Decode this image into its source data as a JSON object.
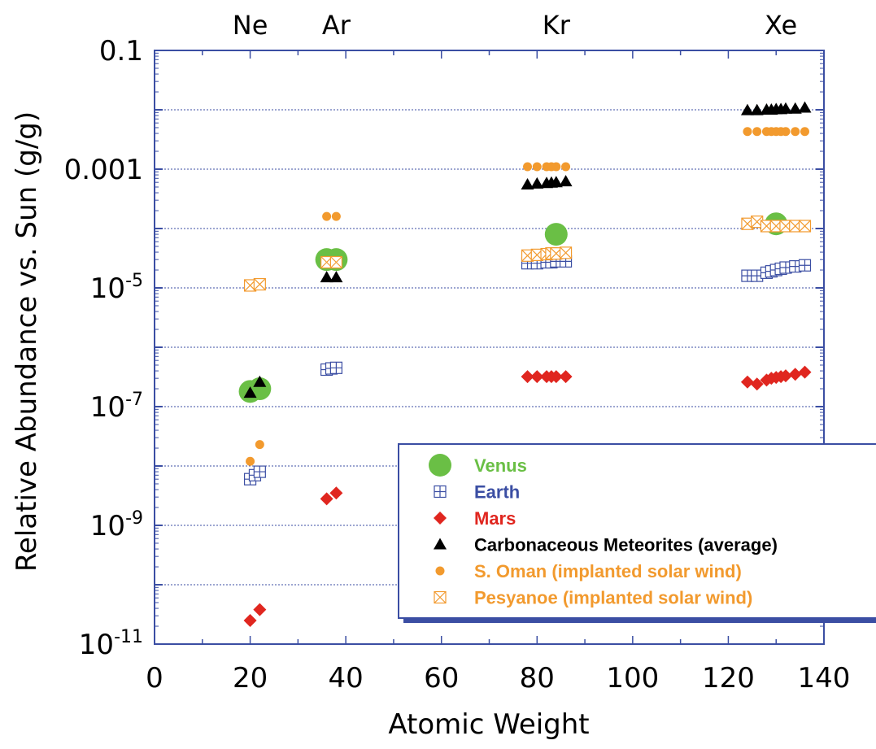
{
  "chart_data": {
    "type": "scatter",
    "title": "",
    "xlabel": "Atomic Weight",
    "ylabel": "Relative Abundance vs. Sun (g/g)",
    "xlim": [
      0,
      140
    ],
    "ylim": [
      1e-11,
      0.1
    ],
    "y_scale": "log",
    "x_ticks": [
      "0",
      "20",
      "40",
      "60",
      "80",
      "100",
      "120",
      "140"
    ],
    "y_ticks": [
      {
        "base": "0.1",
        "exp": ""
      },
      {
        "base": "0.001",
        "exp": ""
      },
      {
        "base": "10",
        "exp": "-5"
      },
      {
        "base": "10",
        "exp": "-7"
      },
      {
        "base": "10",
        "exp": "-9"
      },
      {
        "base": "10",
        "exp": "-11"
      }
    ],
    "element_labels": [
      {
        "text": "Ne",
        "x": 20
      },
      {
        "text": "Ar",
        "x": 38
      },
      {
        "text": "Kr",
        "x": 84
      },
      {
        "text": "Xe",
        "x": 131
      }
    ],
    "grid": "horizontal dotted",
    "legend_position": "lower-right",
    "series": [
      {
        "name": "Venus",
        "marker": "circle-large",
        "color": "#6abf45",
        "points": [
          [
            20,
            1.8e-07
          ],
          [
            22,
            2e-07
          ],
          [
            36,
            3e-05
          ],
          [
            38,
            3e-05
          ],
          [
            84,
            8e-05
          ],
          [
            130,
            0.00012
          ]
        ]
      },
      {
        "name": "Earth",
        "marker": "square-plus",
        "color": "#3b4ea3",
        "points": [
          [
            20,
            6e-09
          ],
          [
            21,
            7e-09
          ],
          [
            22,
            8e-09
          ],
          [
            36,
            4.2e-07
          ],
          [
            37,
            4.4e-07
          ],
          [
            38,
            4.5e-07
          ],
          [
            78,
            2.6e-05
          ],
          [
            80,
            2.6e-05
          ],
          [
            82,
            2.7e-05
          ],
          [
            83,
            2.7e-05
          ],
          [
            84,
            2.8e-05
          ],
          [
            86,
            2.8e-05
          ],
          [
            124,
            1.6e-05
          ],
          [
            126,
            1.6e-05
          ],
          [
            128,
            1.8e-05
          ],
          [
            129,
            1.9e-05
          ],
          [
            130,
            2e-05
          ],
          [
            131,
            2.1e-05
          ],
          [
            132,
            2.2e-05
          ],
          [
            134,
            2.3e-05
          ],
          [
            136,
            2.4e-05
          ]
        ]
      },
      {
        "name": "Mars",
        "marker": "diamond",
        "color": "#e0261f",
        "points": [
          [
            20,
            2.5e-11
          ],
          [
            22,
            3.8e-11
          ],
          [
            36,
            2.8e-09
          ],
          [
            38,
            3.5e-09
          ],
          [
            78,
            3.2e-07
          ],
          [
            80,
            3.2e-07
          ],
          [
            82,
            3.2e-07
          ],
          [
            83,
            3.2e-07
          ],
          [
            84,
            3.2e-07
          ],
          [
            86,
            3.2e-07
          ],
          [
            124,
            2.6e-07
          ],
          [
            126,
            2.4e-07
          ],
          [
            128,
            2.8e-07
          ],
          [
            129,
            3e-07
          ],
          [
            130,
            3.1e-07
          ],
          [
            131,
            3.2e-07
          ],
          [
            132,
            3.3e-07
          ],
          [
            134,
            3.5e-07
          ],
          [
            136,
            3.8e-07
          ]
        ]
      },
      {
        "name": "Carbonaceous Meteorites (average)",
        "marker": "triangle",
        "color": "#000000",
        "points": [
          [
            20,
            1.7e-07
          ],
          [
            22,
            2.6e-07
          ],
          [
            36,
            1.5e-05
          ],
          [
            38,
            1.5e-05
          ],
          [
            78,
            0.00055
          ],
          [
            80,
            0.00057
          ],
          [
            82,
            0.00058
          ],
          [
            83,
            0.00059
          ],
          [
            84,
            0.0006
          ],
          [
            86,
            0.00062
          ],
          [
            124,
            0.0098
          ],
          [
            126,
            0.0098
          ],
          [
            128,
            0.01
          ],
          [
            129,
            0.01
          ],
          [
            130,
            0.0102
          ],
          [
            131,
            0.0102
          ],
          [
            132,
            0.0104
          ],
          [
            134,
            0.0104
          ],
          [
            136,
            0.0108
          ]
        ]
      },
      {
        "name": "S. Oman (implanted solar wind)",
        "marker": "dot",
        "color": "#f29a2e",
        "points": [
          [
            20,
            1.2e-08
          ],
          [
            22,
            2.3e-08
          ],
          [
            36,
            0.00016
          ],
          [
            38,
            0.00016
          ],
          [
            78,
            0.0011
          ],
          [
            80,
            0.0011
          ],
          [
            82,
            0.0011
          ],
          [
            83,
            0.0011
          ],
          [
            84,
            0.0011
          ],
          [
            86,
            0.0011
          ],
          [
            124,
            0.0043
          ],
          [
            126,
            0.0043
          ],
          [
            128,
            0.0043
          ],
          [
            129,
            0.0043
          ],
          [
            130,
            0.0043
          ],
          [
            131,
            0.0043
          ],
          [
            132,
            0.0043
          ],
          [
            134,
            0.0043
          ],
          [
            136,
            0.0043
          ]
        ]
      },
      {
        "name": "Pesyanoe (implanted solar wind)",
        "marker": "square-x",
        "color": "#f29a2e",
        "points": [
          [
            20,
            1.1e-05
          ],
          [
            22,
            1.15e-05
          ],
          [
            36,
            2.7e-05
          ],
          [
            38,
            2.7e-05
          ],
          [
            78,
            3.5e-05
          ],
          [
            80,
            3.6e-05
          ],
          [
            82,
            3.7e-05
          ],
          [
            83,
            3.8e-05
          ],
          [
            84,
            3.8e-05
          ],
          [
            86,
            3.9e-05
          ],
          [
            124,
            0.00012
          ],
          [
            126,
            0.00013
          ],
          [
            128,
            0.00011
          ],
          [
            130,
            0.00011
          ],
          [
            132,
            0.00011
          ],
          [
            134,
            0.00011
          ],
          [
            136,
            0.00011
          ]
        ]
      }
    ]
  }
}
